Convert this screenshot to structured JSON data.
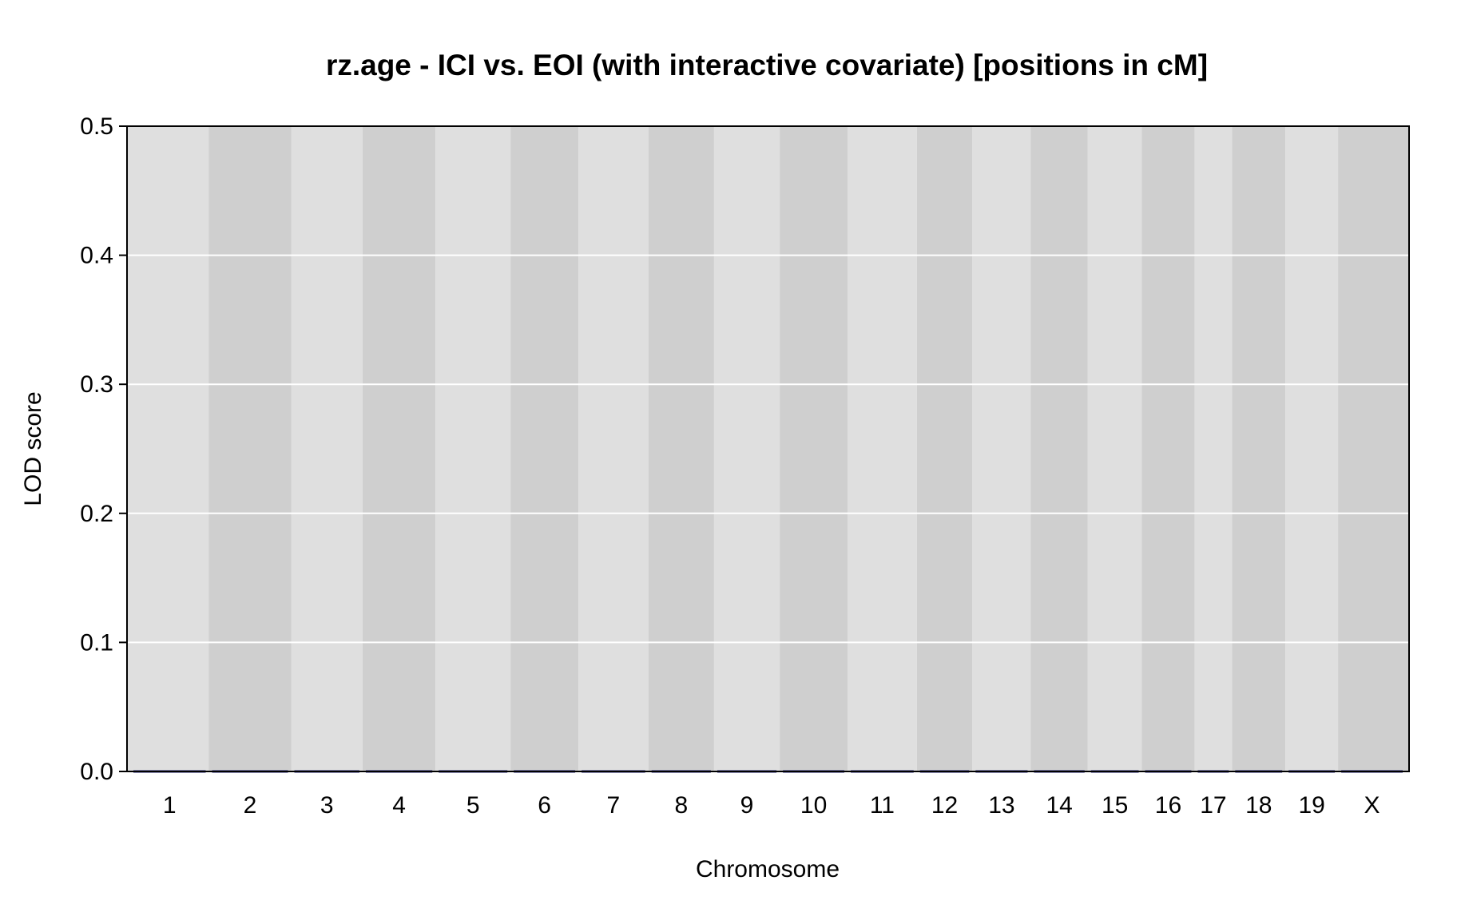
{
  "chart_data": {
    "type": "line",
    "title": "rz.age - ICI vs. EOI (with interactive covariate) [positions in cM]",
    "xlabel": "Chromosome",
    "ylabel": "LOD score",
    "ylim": [
      0,
      0.5
    ],
    "yticks": [
      "0.0",
      "0.1",
      "0.2",
      "0.3",
      "0.4",
      "0.5"
    ],
    "ytick_values": [
      0,
      0.1,
      0.2,
      0.3,
      0.4,
      0.5
    ],
    "categories": [
      "1",
      "2",
      "3",
      "4",
      "5",
      "6",
      "7",
      "8",
      "9",
      "10",
      "11",
      "12",
      "13",
      "14",
      "15",
      "16",
      "17",
      "18",
      "19",
      "X"
    ],
    "chromosome_lengths_cM": [
      100,
      105,
      90,
      92,
      95,
      85,
      88,
      82,
      82,
      85,
      87,
      68,
      72,
      70,
      66,
      64,
      43,
      65,
      64,
      85
    ],
    "grid": true,
    "band_colors": [
      "#dfdfdf",
      "#cfcfcf"
    ],
    "grid_color": "#ffffff",
    "line_color": "#1a1a6e",
    "series": [
      {
        "values": [
          0,
          0,
          0,
          0,
          0,
          0,
          0,
          0,
          0,
          0,
          0,
          0,
          0,
          0,
          0,
          0,
          0,
          0,
          0,
          0
        ]
      }
    ]
  }
}
